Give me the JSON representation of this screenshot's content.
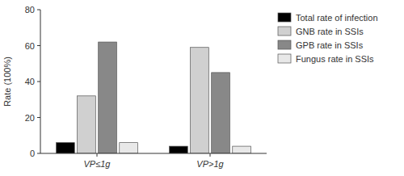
{
  "chart_data": {
    "type": "bar",
    "categories": [
      "VP≤1g",
      "VP>1g"
    ],
    "series": [
      {
        "name": "Total rate of infection",
        "color": "#000000",
        "values": [
          6,
          4
        ]
      },
      {
        "name": "GNB rate in SSIs",
        "color": "#d0d0d0",
        "values": [
          32,
          59
        ]
      },
      {
        "name": "GPB rate in SSIs",
        "color": "#888888",
        "values": [
          62,
          45
        ]
      },
      {
        "name": "Fungus rate in SSIs",
        "color": "#e8e8e8",
        "values": [
          6,
          4
        ]
      }
    ],
    "ylabel": "Rate (100%)",
    "ylim": [
      0,
      80
    ],
    "yticks": [
      0,
      20,
      40,
      60,
      80
    ],
    "grid": false,
    "legend": "right"
  }
}
